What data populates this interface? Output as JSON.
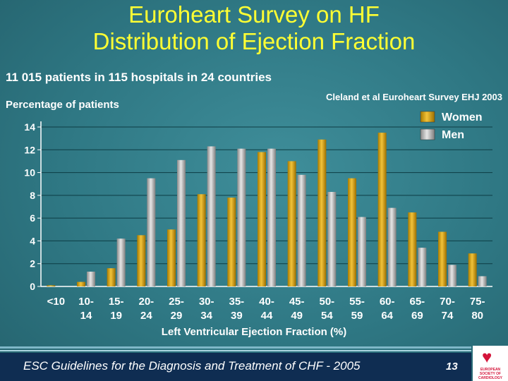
{
  "header": {
    "title_line1": "Euroheart Survey on HF",
    "title_line2": "Distribution of Ejection Fraction"
  },
  "subtitle": "11 015 patients in 115 hospitals in 24 countries",
  "reference": "Cleland et al Euroheart Survey EHJ 2003",
  "footer": {
    "text": "ESC Guidelines for the Diagnosis and Treatment of CHF - 2005",
    "page_number": "13",
    "logo_text": "EUROPEAN SOCIETY OF CARDIOLOGY"
  },
  "colors": {
    "women": "#d9a20a",
    "men": "#b5b5b5",
    "title": "#ffff33",
    "footer_bg": "#0f2d52"
  },
  "chart_data": {
    "type": "bar",
    "categories": [
      [
        "<10",
        ""
      ],
      [
        "10-",
        "14"
      ],
      [
        "15-",
        "19"
      ],
      [
        "20-",
        "24"
      ],
      [
        "25-",
        "29"
      ],
      [
        "30-",
        "34"
      ],
      [
        "35-",
        "39"
      ],
      [
        "40-",
        "44"
      ],
      [
        "45-",
        "49"
      ],
      [
        "50-",
        "54"
      ],
      [
        "55-",
        "59"
      ],
      [
        "60-",
        "64"
      ],
      [
        "65-",
        "69"
      ],
      [
        "70-",
        "74"
      ],
      [
        "75-",
        "80"
      ]
    ],
    "series": [
      {
        "name": "Women",
        "values": [
          0.1,
          0.4,
          1.6,
          4.5,
          5.0,
          8.1,
          7.8,
          11.8,
          11.0,
          12.9,
          9.5,
          13.5,
          6.5,
          4.8,
          2.9
        ]
      },
      {
        "name": "Men",
        "values": [
          0.0,
          1.3,
          4.2,
          9.5,
          11.1,
          12.3,
          12.1,
          12.1,
          9.8,
          8.3,
          6.1,
          6.9,
          3.4,
          1.9,
          0.9
        ]
      }
    ],
    "xlabel": "Left Ventricular Ejection Fraction (%)",
    "ylabel": "Percentage of patients",
    "ylim": [
      0,
      14
    ],
    "yticks": [
      "0",
      "2",
      "4",
      "6",
      "8",
      "10",
      "12",
      "14"
    ],
    "grid": true,
    "legend": "top-right"
  }
}
